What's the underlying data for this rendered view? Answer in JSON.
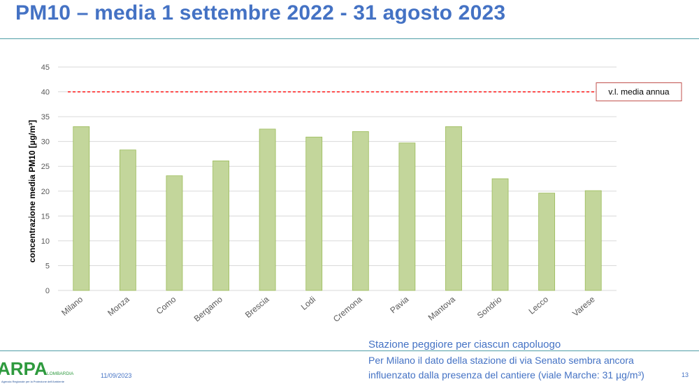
{
  "slide": {
    "title": "PM10 – media 1 settembre 2022 - 31 agosto 2023",
    "note_title": "Stazione peggiore per ciascun capoluogo",
    "note_line1": "Per Milano il dato della stazione di via Senato sembra ancora",
    "note_line2": "influenzato dalla presenza del cantiere (viale Marche: 31 µg/m³)",
    "date": "11/09/2023",
    "page_number": "13",
    "logo_text": "ARPA",
    "logo_subtext": "LOMBARDIA",
    "logo_tagline": "Agenzia Regionale per la Protezione dell'Ambiente"
  },
  "colors": {
    "title": "#4472c4",
    "bar_fill": "#c3d69b",
    "bar_stroke": "#9bbb59",
    "limit_line": "#ff0000",
    "grid": "#d9d9d9",
    "axis_text": "#595959",
    "logo_green": "#2e9a3e",
    "logo_blue": "#1f4e96"
  },
  "chart_data": {
    "type": "bar",
    "categories": [
      "Milano",
      "Monza",
      "Como",
      "Bergamo",
      "Brescia",
      "Lodi",
      "Cremona",
      "Pavia",
      "Mantova",
      "Sondrio",
      "Lecco",
      "Varese"
    ],
    "values": [
      33,
      28.3,
      23.1,
      26.1,
      32.5,
      30.9,
      32,
      29.7,
      33,
      22.5,
      19.6,
      20.1
    ],
    "ylabel": "concentrazione media PM10 [µg/m³]",
    "xlabel": "",
    "ylim": [
      0,
      45
    ],
    "yticks": [
      0,
      5,
      10,
      15,
      20,
      25,
      30,
      35,
      40,
      45
    ],
    "grid": true,
    "reference_line": {
      "value": 40,
      "label": "v.l. media annua",
      "style": "dashed"
    }
  }
}
